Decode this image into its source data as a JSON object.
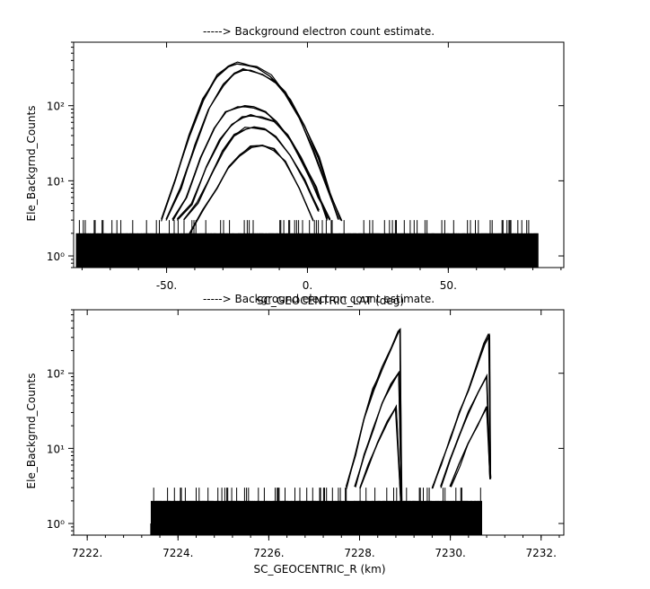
{
  "chart_data": [
    {
      "type": "line",
      "title": "-----> Background electron count estimate.",
      "xlabel": "SC_GEOCENTRIC_LAT (deg)",
      "ylabel": "Ele_Backgrnd_Counts",
      "yscale": "log",
      "xlim": [
        -83,
        91
      ],
      "ylim": [
        0.7,
        700
      ],
      "x_ticks": [
        -50,
        0,
        50
      ],
      "x_tick_labels": [
        "-50.",
        "0.",
        "50."
      ],
      "y_ticks": [
        1,
        10,
        100
      ],
      "y_tick_labels": [
        "10⁰",
        "10¹",
        "10²"
      ],
      "background_count_range": [
        0.7,
        3
      ],
      "background_x_span": [
        -82,
        82
      ],
      "series": [
        {
          "x": [
            -52,
            -47,
            -42,
            -37,
            -32,
            -28,
            -25,
            -22,
            -18,
            -13,
            -8,
            -3,
            2,
            7,
            11
          ],
          "values": [
            3,
            10,
            40,
            120,
            250,
            340,
            370,
            355,
            320,
            250,
            150,
            70,
            25,
            8,
            3
          ]
        },
        {
          "x": [
            -50,
            -45,
            -40,
            -35,
            -30,
            -26,
            -23,
            -20,
            -16,
            -11,
            -6,
            -1,
            4,
            8,
            12
          ],
          "values": [
            3,
            8,
            30,
            90,
            190,
            270,
            300,
            290,
            260,
            200,
            120,
            55,
            20,
            7,
            3
          ]
        },
        {
          "x": [
            -48,
            -43,
            -38,
            -33,
            -29,
            -25,
            -22,
            -19,
            -15,
            -11,
            -6,
            -1,
            4,
            8
          ],
          "values": [
            3,
            6,
            20,
            50,
            80,
            95,
            98,
            95,
            85,
            60,
            35,
            15,
            6,
            3
          ]
        },
        {
          "x": [
            -46,
            -41,
            -36,
            -31,
            -27,
            -23,
            -20,
            -16,
            -12,
            -7,
            -2,
            3,
            7
          ],
          "values": [
            3,
            5,
            15,
            35,
            55,
            70,
            75,
            70,
            60,
            40,
            20,
            8,
            3
          ]
        },
        {
          "x": [
            -44,
            -39,
            -34,
            -30,
            -26,
            -22,
            -19,
            -15,
            -11,
            -6,
            -1,
            4
          ],
          "values": [
            3,
            5,
            12,
            25,
            40,
            50,
            52,
            48,
            38,
            22,
            10,
            4
          ]
        },
        {
          "x": [
            -42,
            -37,
            -32,
            -28,
            -24,
            -20,
            -16,
            -12,
            -8,
            -3,
            2
          ],
          "values": [
            2,
            4,
            8,
            15,
            22,
            28,
            30,
            26,
            18,
            8,
            3
          ]
        }
      ]
    },
    {
      "type": "line",
      "title": "-----> Background electron count estimate.",
      "xlabel": "SC_GEOCENTRIC_R (km)",
      "ylabel": "Ele_Backgrnd_Counts",
      "yscale": "log",
      "xlim": [
        7221.7,
        7232.5
      ],
      "ylim": [
        0.7,
        700
      ],
      "x_ticks": [
        7222,
        7224,
        7226,
        7228,
        7230,
        7232
      ],
      "x_tick_labels": [
        "7222.",
        "7224.",
        "7226.",
        "7228.",
        "7230.",
        "7232."
      ],
      "y_ticks": [
        1,
        10,
        100
      ],
      "y_tick_labels": [
        "10⁰",
        "10¹",
        "10²"
      ],
      "background_count_range": [
        0.7,
        3
      ],
      "background_x_span": [
        7223.4,
        7230.7
      ],
      "series": [
        {
          "x": [
            7227.7,
            7227.9,
            7228.1,
            7228.3,
            7228.5,
            7228.7,
            7228.85,
            7228.9,
            7228.92
          ],
          "values": [
            3,
            8,
            25,
            60,
            120,
            220,
            350,
            380,
            2
          ]
        },
        {
          "x": [
            7227.9,
            7228.1,
            7228.3,
            7228.5,
            7228.7,
            7228.85,
            7228.92
          ],
          "values": [
            3,
            8,
            18,
            40,
            70,
            100,
            2
          ]
        },
        {
          "x": [
            7228.0,
            7228.2,
            7228.4,
            7228.6,
            7228.8,
            7228.9
          ],
          "values": [
            3,
            6,
            12,
            22,
            35,
            2
          ]
        },
        {
          "x": [
            7229.6,
            7229.8,
            7230.0,
            7230.2,
            7230.4,
            7230.6,
            7230.75,
            7230.85,
            7230.88
          ],
          "values": [
            3,
            6,
            14,
            30,
            60,
            130,
            250,
            330,
            4
          ]
        },
        {
          "x": [
            7229.8,
            7230.0,
            7230.2,
            7230.4,
            7230.6,
            7230.8,
            7230.88
          ],
          "values": [
            3,
            7,
            15,
            30,
            55,
            90,
            4
          ]
        },
        {
          "x": [
            7230.0,
            7230.2,
            7230.4,
            7230.6,
            7230.8,
            7230.88
          ],
          "values": [
            3,
            6,
            12,
            20,
            35,
            4
          ]
        }
      ]
    }
  ]
}
